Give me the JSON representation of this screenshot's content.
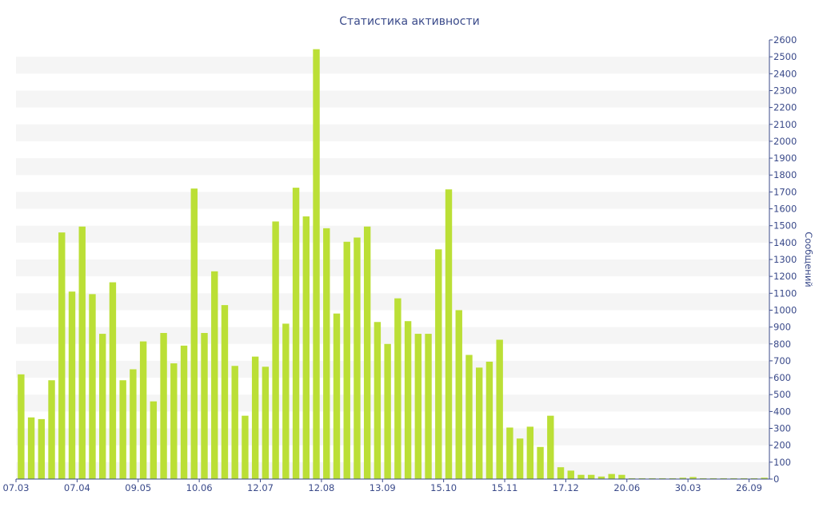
{
  "chart_data": {
    "type": "bar",
    "title": "Статистика активности",
    "xlabel": "",
    "ylabel": "Сообщений",
    "ylim": [
      0,
      2600
    ],
    "y_ticks": [
      0,
      100,
      200,
      300,
      400,
      500,
      600,
      700,
      800,
      900,
      1000,
      1100,
      1200,
      1300,
      1400,
      1500,
      1600,
      1700,
      1800,
      1900,
      2000,
      2100,
      2200,
      2300,
      2400,
      2500,
      2600
    ],
    "x_tick_labels": [
      {
        "index": 0,
        "label": "07.03"
      },
      {
        "index": 6,
        "label": "07.04"
      },
      {
        "index": 12,
        "label": "09.05"
      },
      {
        "index": 18,
        "label": "10.06"
      },
      {
        "index": 24,
        "label": "12.07"
      },
      {
        "index": 30,
        "label": "12.08"
      },
      {
        "index": 36,
        "label": "13.09"
      },
      {
        "index": 42,
        "label": "15.10"
      },
      {
        "index": 48,
        "label": "15.11"
      },
      {
        "index": 54,
        "label": "17.12"
      },
      {
        "index": 60,
        "label": "20.06"
      },
      {
        "index": 66,
        "label": "30.03"
      },
      {
        "index": 72,
        "label": "26.09"
      }
    ],
    "values": [
      620,
      365,
      355,
      585,
      1460,
      1110,
      1495,
      1095,
      860,
      1165,
      585,
      650,
      815,
      460,
      865,
      685,
      790,
      1720,
      865,
      1230,
      1030,
      670,
      375,
      725,
      665,
      1525,
      920,
      1725,
      1555,
      2545,
      1485,
      980,
      1405,
      1430,
      1495,
      930,
      800,
      1070,
      935,
      860,
      860,
      1360,
      1715,
      1000,
      735,
      660,
      695,
      825,
      305,
      240,
      310,
      190,
      375,
      70,
      50,
      25,
      25,
      15,
      30,
      25,
      5,
      5,
      5,
      5,
      5,
      8,
      12,
      5,
      5,
      5,
      5,
      5,
      5,
      8
    ],
    "grid": "horizontal bands",
    "colors": {
      "bar": "#bbdf36",
      "axis": "#3a4a8a",
      "band": "#f5f5f5",
      "text": "#3a4a8a"
    }
  }
}
